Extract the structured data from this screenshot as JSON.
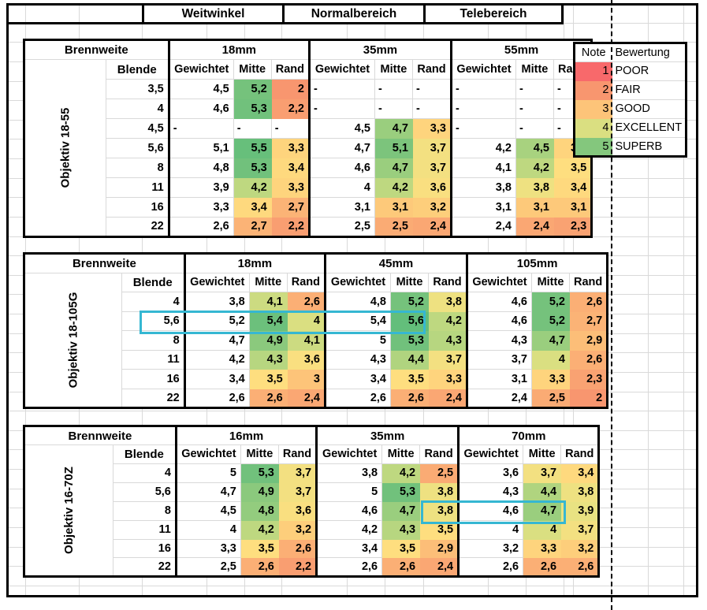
{
  "top_band": {
    "groups": [
      "Weitwinkel",
      "Normalbereich",
      "Telebereich"
    ]
  },
  "tables": [
    {
      "lens_label": "Objektiv 18-55",
      "brennweite_label": "Brennweite",
      "blende_label": "Blende",
      "focal_lengths": [
        "18mm",
        "35mm",
        "55mm"
      ],
      "col_headers": [
        "Gewichtet",
        "Mitte",
        "Rand"
      ],
      "rows": [
        {
          "blende": "3,5",
          "cells": [
            "4,5",
            "5,2",
            "2",
            "-",
            "-",
            "-",
            "-",
            "-",
            "-"
          ]
        },
        {
          "blende": "4",
          "cells": [
            "4,6",
            "5,3",
            "2,2",
            "-",
            "-",
            "-",
            "-",
            "-",
            "-"
          ]
        },
        {
          "blende": "4,5",
          "cells": [
            "-",
            "-",
            "-",
            "4,5",
            "4,7",
            "3,3",
            "-",
            "-",
            "-"
          ]
        },
        {
          "blende": "5,6",
          "cells": [
            "5,1",
            "5,5",
            "3,3",
            "4,7",
            "5,1",
            "3,7",
            "4,2",
            "4,5",
            "3,3"
          ]
        },
        {
          "blende": "8",
          "cells": [
            "4,8",
            "5,3",
            "3,4",
            "4,6",
            "4,7",
            "3,7",
            "4,1",
            "4,2",
            "3,5"
          ]
        },
        {
          "blende": "11",
          "cells": [
            "3,9",
            "4,2",
            "3,3",
            "4",
            "4,2",
            "3,6",
            "3,8",
            "3,8",
            "3,4"
          ]
        },
        {
          "blende": "16",
          "cells": [
            "3,3",
            "3,4",
            "2,7",
            "3,1",
            "3,1",
            "3,2",
            "3,1",
            "3,1",
            "3,1"
          ]
        },
        {
          "blende": "22",
          "cells": [
            "2,6",
            "2,7",
            "2,2",
            "2,5",
            "2,5",
            "2,4",
            "2,4",
            "2,4",
            "2,3"
          ]
        }
      ],
      "highlight": null
    },
    {
      "lens_label": "Objektiv 18-105G",
      "brennweite_label": "Brennweite",
      "blende_label": "Blende",
      "focal_lengths": [
        "18mm",
        "45mm",
        "105mm"
      ],
      "col_headers": [
        "Gewichtet",
        "Mitte",
        "Rand"
      ],
      "rows": [
        {
          "blende": "4",
          "cells": [
            "3,8",
            "4,1",
            "2,6",
            "4,8",
            "5,2",
            "3,8",
            "4,6",
            "5,2",
            "2,6"
          ]
        },
        {
          "blende": "5,6",
          "cells": [
            "5,2",
            "5,4",
            "4",
            "5,4",
            "5,6",
            "4,2",
            "4,6",
            "5,2",
            "2,7"
          ]
        },
        {
          "blende": "8",
          "cells": [
            "4,7",
            "4,9",
            "4,1",
            "5",
            "5,3",
            "4,3",
            "4,3",
            "4,7",
            "2,9"
          ]
        },
        {
          "blende": "11",
          "cells": [
            "4,2",
            "4,3",
            "3,6",
            "4,3",
            "4,4",
            "3,7",
            "3,7",
            "4",
            "2,6"
          ]
        },
        {
          "blende": "16",
          "cells": [
            "3,4",
            "3,5",
            "3",
            "3,4",
            "3,5",
            "3,3",
            "3,1",
            "3,3",
            "2,3"
          ]
        },
        {
          "blende": "22",
          "cells": [
            "2,6",
            "2,6",
            "2,4",
            "2,6",
            "2,6",
            "2,4",
            "2,4",
            "2,5",
            "2"
          ]
        }
      ],
      "highlight": {
        "row_index": 1,
        "cell_start": 0,
        "cell_end": 5
      }
    },
    {
      "lens_label": "Objektiv 16-70Z",
      "brennweite_label": "Brennweite",
      "blende_label": "Blende",
      "focal_lengths": [
        "16mm",
        "35mm",
        "70mm"
      ],
      "col_headers": [
        "Gewichtet",
        "Mitte",
        "Rand"
      ],
      "rows": [
        {
          "blende": "4",
          "cells": [
            "5",
            "5,3",
            "3,7",
            "3,8",
            "4,2",
            "2,5",
            "3,6",
            "3,7",
            "3,4"
          ]
        },
        {
          "blende": "5,6",
          "cells": [
            "4,7",
            "4,9",
            "3,7",
            "5",
            "5,3",
            "3,8",
            "4,3",
            "4,4",
            "3,8"
          ]
        },
        {
          "blende": "8",
          "cells": [
            "4,5",
            "4,8",
            "3,6",
            "4,6",
            "4,7",
            "3,8",
            "4,6",
            "4,7",
            "3,9"
          ]
        },
        {
          "blende": "11",
          "cells": [
            "4",
            "4,2",
            "3,2",
            "4,2",
            "4,3",
            "3,5",
            "4",
            "4",
            "3,7"
          ]
        },
        {
          "blende": "16",
          "cells": [
            "3,3",
            "3,5",
            "2,6",
            "3,4",
            "3,5",
            "2,9",
            "3,2",
            "3,3",
            "3,2"
          ]
        },
        {
          "blende": "22",
          "cells": [
            "2,5",
            "2,6",
            "2,2",
            "2,6",
            "2,6",
            "2,4",
            "2,6",
            "2,6",
            "2,6"
          ]
        }
      ],
      "highlight": {
        "row_index": 2,
        "cell_start": 6,
        "cell_end": 8
      }
    }
  ],
  "legend": {
    "headers": [
      "Note",
      "Bewertung"
    ],
    "rows": [
      {
        "note": "1",
        "rating": "POOR"
      },
      {
        "note": "2",
        "rating": "FAIR"
      },
      {
        "note": "3",
        "rating": "GOOD"
      },
      {
        "note": "4",
        "rating": "EXCELLENT"
      },
      {
        "note": "5",
        "rating": "SUPERB"
      }
    ]
  },
  "colors": {
    "highlight_box": "#35b7d2",
    "gridline": "#d9d9d9",
    "border": "#000000",
    "scale_stops": [
      {
        "value": 1.0,
        "color": "#f8696b"
      },
      {
        "value": 2.0,
        "color": "#f8966f"
      },
      {
        "value": 2.7,
        "color": "#fbb376"
      },
      {
        "value": 3.1,
        "color": "#fdc97a"
      },
      {
        "value": 3.5,
        "color": "#fede7f"
      },
      {
        "value": 3.9,
        "color": "#e8e282"
      },
      {
        "value": 4.2,
        "color": "#bed880"
      },
      {
        "value": 4.7,
        "color": "#9ace7e"
      },
      {
        "value": 5.2,
        "color": "#75c27c"
      },
      {
        "value": 5.6,
        "color": "#63be7b"
      }
    ]
  }
}
